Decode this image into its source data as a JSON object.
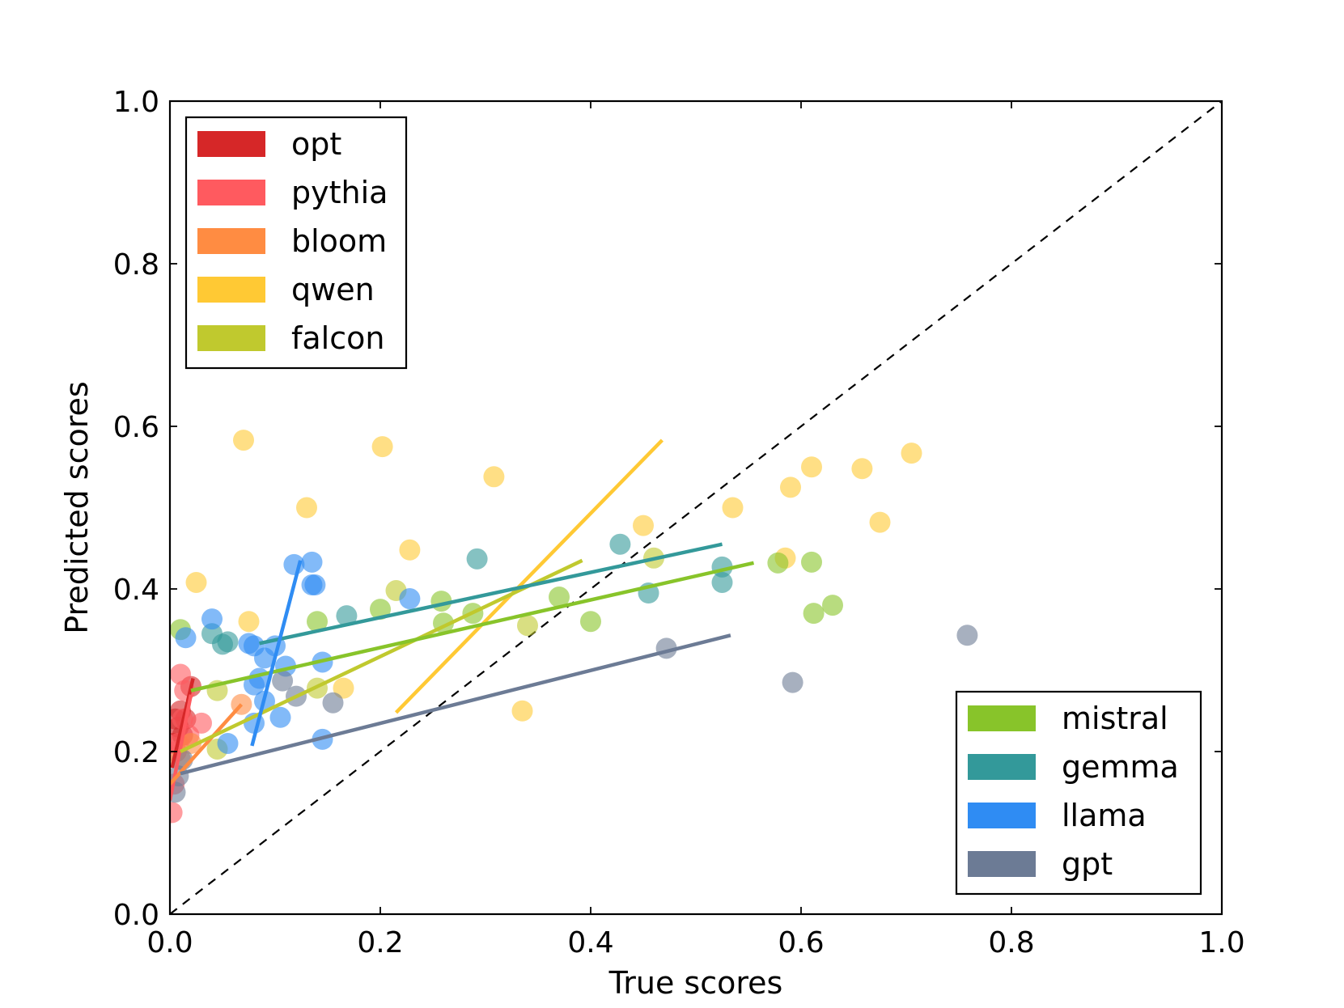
{
  "chart_data": {
    "type": "scatter",
    "title": "",
    "xlabel": "True scores",
    "ylabel": "Predicted scores",
    "xlim": [
      0.0,
      1.0
    ],
    "ylim": [
      0.0,
      1.0
    ],
    "xticks": [
      "0.0",
      "0.2",
      "0.4",
      "0.6",
      "0.8",
      "1.0"
    ],
    "yticks": [
      "0.0",
      "0.2",
      "0.4",
      "0.6",
      "0.8",
      "1.0"
    ],
    "grid": false,
    "diagonal": "dashed y = x reference line",
    "legends": [
      {
        "placement": "top-left",
        "entries": [
          "opt",
          "pythia",
          "bloom",
          "qwen",
          "falcon"
        ]
      },
      {
        "placement": "bottom-right",
        "entries": [
          "mistral",
          "gemma",
          "llama",
          "gpt"
        ]
      }
    ],
    "series": [
      {
        "name": "opt",
        "color": "#d62728",
        "points": [
          [
            0.005,
            0.24
          ],
          [
            0.01,
            0.25
          ],
          [
            0.015,
            0.24
          ],
          [
            0.02,
            0.28
          ],
          [
            0.012,
            0.22
          ],
          [
            0.008,
            0.23
          ],
          [
            0.003,
            0.21
          ]
        ],
        "fit": [
          [
            0.002,
            0.18
          ],
          [
            0.022,
            0.29
          ]
        ]
      },
      {
        "name": "pythia",
        "color": "#ff5a5f",
        "points": [
          [
            0.002,
            0.125
          ],
          [
            0.004,
            0.16
          ],
          [
            0.006,
            0.2
          ],
          [
            0.01,
            0.295
          ],
          [
            0.014,
            0.275
          ],
          [
            0.03,
            0.235
          ],
          [
            0.018,
            0.22
          ],
          [
            0.008,
            0.21
          ],
          [
            0.012,
            0.24
          ]
        ],
        "fit": [
          [
            0.0,
            0.14
          ],
          [
            0.02,
            0.27
          ]
        ]
      },
      {
        "name": "bloom",
        "color": "#ff8c42",
        "points": [
          [
            0.068,
            0.258
          ],
          [
            0.01,
            0.19
          ],
          [
            0.02,
            0.21
          ]
        ],
        "fit": [
          [
            0.0,
            0.16
          ],
          [
            0.068,
            0.258
          ]
        ]
      },
      {
        "name": "qwen",
        "color": "#ffc934",
        "points": [
          [
            0.07,
            0.583
          ],
          [
            0.202,
            0.575
          ],
          [
            0.308,
            0.538
          ],
          [
            0.13,
            0.5
          ],
          [
            0.025,
            0.408
          ],
          [
            0.075,
            0.36
          ],
          [
            0.228,
            0.448
          ],
          [
            0.165,
            0.278
          ],
          [
            0.335,
            0.25
          ],
          [
            0.45,
            0.478
          ],
          [
            0.535,
            0.5
          ],
          [
            0.59,
            0.525
          ],
          [
            0.61,
            0.55
          ],
          [
            0.658,
            0.548
          ],
          [
            0.705,
            0.567
          ],
          [
            0.675,
            0.482
          ],
          [
            0.585,
            0.438
          ]
        ],
        "fit": [
          [
            0.215,
            0.248
          ],
          [
            0.468,
            0.583
          ]
        ]
      },
      {
        "name": "falcon",
        "color": "#c0c92e",
        "points": [
          [
            0.045,
            0.203
          ],
          [
            0.045,
            0.275
          ],
          [
            0.215,
            0.398
          ],
          [
            0.34,
            0.355
          ],
          [
            0.46,
            0.438
          ],
          [
            0.14,
            0.278
          ]
        ],
        "fit": [
          [
            0.01,
            0.2
          ],
          [
            0.392,
            0.435
          ]
        ]
      },
      {
        "name": "mistral",
        "color": "#88c42a",
        "points": [
          [
            0.01,
            0.35
          ],
          [
            0.14,
            0.36
          ],
          [
            0.2,
            0.375
          ],
          [
            0.258,
            0.385
          ],
          [
            0.26,
            0.358
          ],
          [
            0.288,
            0.37
          ],
          [
            0.37,
            0.39
          ],
          [
            0.4,
            0.36
          ],
          [
            0.578,
            0.432
          ],
          [
            0.61,
            0.433
          ],
          [
            0.612,
            0.37
          ],
          [
            0.63,
            0.38
          ]
        ],
        "fit": [
          [
            0.02,
            0.275
          ],
          [
            0.555,
            0.432
          ]
        ]
      },
      {
        "name": "gemma",
        "color": "#33999a",
        "points": [
          [
            0.04,
            0.345
          ],
          [
            0.055,
            0.335
          ],
          [
            0.05,
            0.332
          ],
          [
            0.168,
            0.367
          ],
          [
            0.292,
            0.437
          ],
          [
            0.428,
            0.455
          ],
          [
            0.455,
            0.395
          ],
          [
            0.525,
            0.427
          ],
          [
            0.525,
            0.408
          ]
        ],
        "fit": [
          [
            0.085,
            0.333
          ],
          [
            0.525,
            0.455
          ]
        ]
      },
      {
        "name": "llama",
        "color": "#2f8cf3",
        "points": [
          [
            0.015,
            0.34
          ],
          [
            0.04,
            0.363
          ],
          [
            0.075,
            0.333
          ],
          [
            0.08,
            0.33
          ],
          [
            0.09,
            0.315
          ],
          [
            0.1,
            0.33
          ],
          [
            0.11,
            0.305
          ],
          [
            0.118,
            0.43
          ],
          [
            0.135,
            0.433
          ],
          [
            0.135,
            0.405
          ],
          [
            0.138,
            0.405
          ],
          [
            0.145,
            0.31
          ],
          [
            0.08,
            0.282
          ],
          [
            0.085,
            0.29
          ],
          [
            0.09,
            0.262
          ],
          [
            0.105,
            0.242
          ],
          [
            0.08,
            0.235
          ],
          [
            0.055,
            0.21
          ],
          [
            0.145,
            0.215
          ],
          [
            0.228,
            0.388
          ]
        ],
        "fit": [
          [
            0.078,
            0.207
          ],
          [
            0.124,
            0.435
          ]
        ]
      },
      {
        "name": "gpt",
        "color": "#6c7b95",
        "points": [
          [
            0.005,
            0.15
          ],
          [
            0.008,
            0.17
          ],
          [
            0.012,
            0.19
          ],
          [
            0.107,
            0.287
          ],
          [
            0.12,
            0.268
          ],
          [
            0.155,
            0.26
          ],
          [
            0.472,
            0.327
          ],
          [
            0.592,
            0.285
          ],
          [
            0.758,
            0.343
          ]
        ],
        "fit": [
          [
            0.01,
            0.173
          ],
          [
            0.533,
            0.343
          ]
        ]
      }
    ]
  }
}
